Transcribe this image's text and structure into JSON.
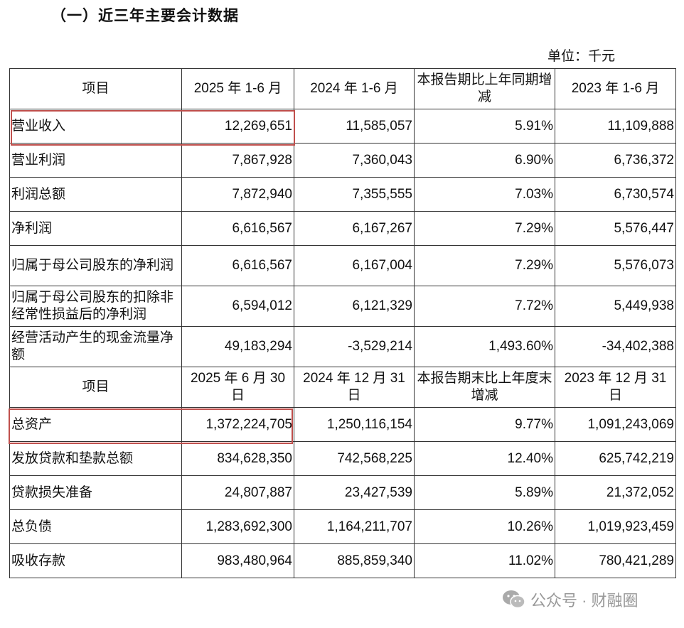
{
  "title": "（一）近三年主要会计数据",
  "unit": "单位：千元",
  "section1": {
    "headers": [
      "项目",
      "2025 年 1-6 月",
      "2024 年 1-6 月",
      "本报告期比上年同期增减",
      "2023 年 1-6 月"
    ],
    "rows": [
      [
        "营业收入",
        "12,269,651",
        "11,585,057",
        "5.91%",
        "11,109,888"
      ],
      [
        "营业利润",
        "7,867,928",
        "7,360,043",
        "6.90%",
        "6,736,372"
      ],
      [
        "利润总额",
        "7,872,940",
        "7,355,555",
        "7.03%",
        "6,730,574"
      ],
      [
        "净利润",
        "6,616,567",
        "6,167,267",
        "7.29%",
        "5,576,447"
      ],
      [
        "归属于母公司股东的净利润",
        "6,616,567",
        "6,167,004",
        "7.29%",
        "5,576,073"
      ],
      [
        "归属于母公司股东的扣除非经常性损益后的净利润",
        "6,594,012",
        "6,121,329",
        "7.72%",
        "5,449,938"
      ],
      [
        "经营活动产生的现金流量净额",
        "49,183,294",
        "-3,529,214",
        "1,493.60%",
        "-34,402,388"
      ]
    ]
  },
  "section2": {
    "headers": [
      "项目",
      "2025 年 6 月 30 日",
      "2024 年 12 月 31 日",
      "本报告期末比上年度末增减",
      "2023 年 12 月 31 日"
    ],
    "rows": [
      [
        "总资产",
        "1,372,224,705",
        "1,250,116,154",
        "9.77%",
        "1,091,243,069"
      ],
      [
        "发放贷款和垫款总额",
        "834,628,350",
        "742,568,225",
        "12.40%",
        "625,742,219"
      ],
      [
        "贷款损失准备",
        "24,807,887",
        "23,427,539",
        "5.89%",
        "21,372,052"
      ],
      [
        "总负债",
        "1,283,692,300",
        "1,164,211,707",
        "10.26%",
        "1,019,923,459"
      ],
      [
        "吸收存款",
        "983,480,964",
        "885,859,340",
        "11.02%",
        "780,421,289"
      ]
    ]
  },
  "watermark": "公众号 · 财融圈",
  "colors": {
    "highlight": "#c0504d",
    "border": "#333333",
    "watermark": "#999999"
  }
}
